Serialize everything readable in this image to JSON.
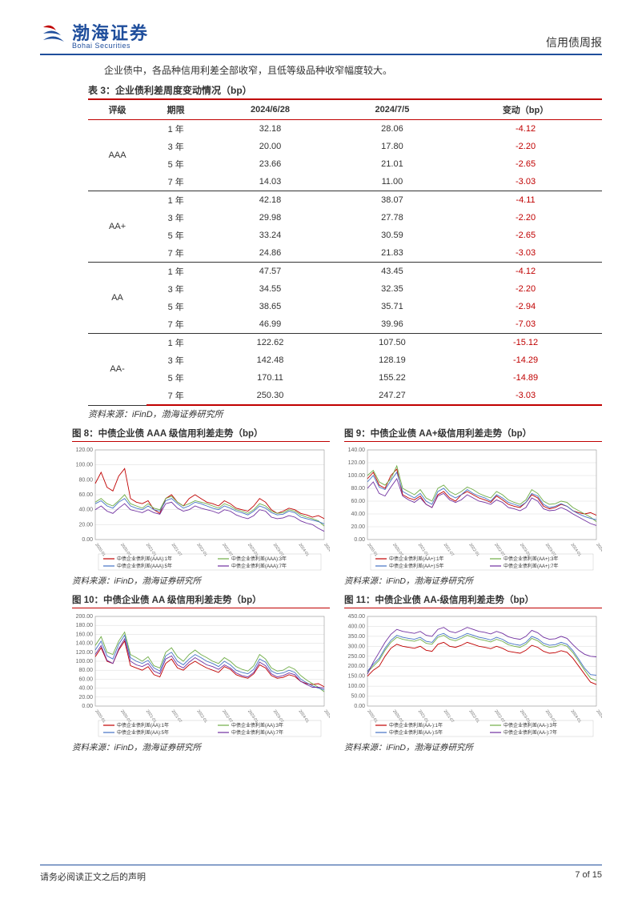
{
  "header": {
    "logo_cn": "渤海证券",
    "logo_en": "Bohai Securities",
    "report_type": "信用债周报"
  },
  "intro": "企业债中，各品种信用利差全部收窄，且低等级品种收窄幅度较大。",
  "table": {
    "title": "表 3：企业债利差周度变动情况（bp）",
    "columns": [
      "评级",
      "期限",
      "2024/6/28",
      "2024/7/5",
      "变动（bp）"
    ],
    "groups": [
      {
        "rating": "AAA",
        "rows": [
          {
            "term": "1 年",
            "d1": "32.18",
            "d2": "28.06",
            "chg": "-4.12"
          },
          {
            "term": "3 年",
            "d1": "20.00",
            "d2": "17.80",
            "chg": "-2.20"
          },
          {
            "term": "5 年",
            "d1": "23.66",
            "d2": "21.01",
            "chg": "-2.65"
          },
          {
            "term": "7 年",
            "d1": "14.03",
            "d2": "11.00",
            "chg": "-3.03"
          }
        ]
      },
      {
        "rating": "AA+",
        "rows": [
          {
            "term": "1 年",
            "d1": "42.18",
            "d2": "38.07",
            "chg": "-4.11"
          },
          {
            "term": "3 年",
            "d1": "29.98",
            "d2": "27.78",
            "chg": "-2.20"
          },
          {
            "term": "5 年",
            "d1": "33.24",
            "d2": "30.59",
            "chg": "-2.65"
          },
          {
            "term": "7 年",
            "d1": "24.86",
            "d2": "21.83",
            "chg": "-3.03"
          }
        ]
      },
      {
        "rating": "AA",
        "rows": [
          {
            "term": "1 年",
            "d1": "47.57",
            "d2": "43.45",
            "chg": "-4.12"
          },
          {
            "term": "3 年",
            "d1": "34.55",
            "d2": "32.35",
            "chg": "-2.20"
          },
          {
            "term": "5 年",
            "d1": "38.65",
            "d2": "35.71",
            "chg": "-2.94"
          },
          {
            "term": "7 年",
            "d1": "46.99",
            "d2": "39.96",
            "chg": "-7.03"
          }
        ]
      },
      {
        "rating": "AA-",
        "rows": [
          {
            "term": "1 年",
            "d1": "122.62",
            "d2": "107.50",
            "chg": "-15.12"
          },
          {
            "term": "3 年",
            "d1": "142.48",
            "d2": "128.19",
            "chg": "-14.29"
          },
          {
            "term": "5 年",
            "d1": "170.11",
            "d2": "155.22",
            "chg": "-14.89"
          },
          {
            "term": "7 年",
            "d1": "250.30",
            "d2": "247.27",
            "chg": "-3.03"
          }
        ]
      }
    ],
    "source": "资料来源：iFinD，渤海证券研究所"
  },
  "charts": [
    {
      "key": "chart8",
      "title": "图 8：中债企业债 AAA 级信用利差走势（bp）",
      "type": "line",
      "ylim": [
        0,
        120
      ],
      "ytick_step": 20,
      "series_colors": [
        "#c00000",
        "#70ad47",
        "#4472c4",
        "#7030a0"
      ],
      "legend": [
        "中债企业债利差(AAA):1年",
        "中债企业债利差(AAA):3年",
        "中债企业债利差(AAA):5年",
        "中债企业债利差(AAA):7年"
      ],
      "x_labels": [
        "2020-01",
        "2020-07",
        "2021-01",
        "2021-07",
        "2022-01",
        "2022-07",
        "2023-01",
        "2023-07",
        "2024-01",
        "2024-07"
      ],
      "series": [
        [
          75,
          90,
          70,
          65,
          85,
          95,
          55,
          50,
          48,
          52,
          40,
          35,
          55,
          60,
          50,
          45,
          55,
          60,
          55,
          50,
          48,
          45,
          52,
          48,
          42,
          40,
          38,
          45,
          55,
          50,
          40,
          35,
          38,
          42,
          40,
          35,
          33,
          30,
          32,
          28
        ],
        [
          50,
          55,
          48,
          45,
          52,
          60,
          48,
          45,
          42,
          48,
          42,
          40,
          55,
          58,
          50,
          45,
          48,
          52,
          50,
          48,
          45,
          42,
          48,
          45,
          40,
          38,
          35,
          40,
          48,
          45,
          38,
          35,
          36,
          40,
          38,
          33,
          30,
          28,
          25,
          18
        ],
        [
          48,
          52,
          45,
          42,
          50,
          55,
          45,
          42,
          40,
          45,
          40,
          38,
          52,
          55,
          48,
          42,
          45,
          50,
          48,
          45,
          42,
          40,
          45,
          42,
          38,
          36,
          33,
          38,
          45,
          42,
          36,
          33,
          34,
          38,
          36,
          30,
          28,
          26,
          24,
          21
        ],
        [
          40,
          45,
          38,
          35,
          42,
          48,
          40,
          38,
          36,
          40,
          36,
          34,
          48,
          50,
          42,
          38,
          40,
          45,
          42,
          40,
          38,
          35,
          40,
          38,
          33,
          30,
          28,
          32,
          40,
          38,
          30,
          28,
          29,
          32,
          30,
          25,
          22,
          20,
          15,
          11
        ]
      ],
      "source": "资料来源：iFinD，渤海证券研究所"
    },
    {
      "key": "chart9",
      "title": "图 9：中债企业债 AA+级信用利差走势（bp）",
      "type": "line",
      "ylim": [
        0,
        140
      ],
      "ytick_step": 20,
      "series_colors": [
        "#c00000",
        "#70ad47",
        "#4472c4",
        "#7030a0"
      ],
      "legend": [
        "中债企业债利差(AA+):1年",
        "中债企业债利差(AA+):3年",
        "中债企业债利差(AA+):5年",
        "中债企业债利差(AA+):7年"
      ],
      "x_labels": [
        "2020-01",
        "2020-07",
        "2021-01",
        "2021-07",
        "2022-01",
        "2022-07",
        "2023-01",
        "2023-07",
        "2024-01",
        "2024-07"
      ],
      "series": [
        [
          95,
          105,
          85,
          80,
          100,
          110,
          70,
          65,
          62,
          68,
          55,
          50,
          70,
          75,
          65,
          60,
          70,
          75,
          70,
          65,
          62,
          58,
          68,
          62,
          55,
          52,
          50,
          58,
          70,
          65,
          52,
          48,
          50,
          55,
          52,
          45,
          42,
          40,
          42,
          38
        ],
        [
          100,
          108,
          90,
          85,
          95,
          115,
          80,
          75,
          70,
          78,
          65,
          60,
          80,
          85,
          75,
          70,
          75,
          82,
          78,
          72,
          68,
          65,
          75,
          70,
          62,
          58,
          55,
          62,
          78,
          72,
          60,
          55,
          56,
          60,
          58,
          50,
          45,
          40,
          35,
          28
        ],
        [
          90,
          100,
          82,
          78,
          92,
          105,
          75,
          70,
          65,
          72,
          60,
          55,
          75,
          80,
          70,
          65,
          70,
          78,
          72,
          68,
          65,
          60,
          70,
          65,
          58,
          55,
          52,
          58,
          72,
          68,
          55,
          50,
          52,
          56,
          52,
          45,
          40,
          36,
          33,
          31
        ],
        [
          80,
          90,
          72,
          68,
          82,
          95,
          68,
          62,
          58,
          65,
          55,
          50,
          68,
          72,
          62,
          58,
          62,
          70,
          65,
          60,
          58,
          55,
          62,
          58,
          50,
          48,
          45,
          50,
          65,
          60,
          48,
          45,
          46,
          50,
          46,
          40,
          35,
          30,
          25,
          22
        ]
      ],
      "source": "资料来源：iFinD，渤海证券研究所"
    },
    {
      "key": "chart10",
      "title": "图 10：中债企业债 AA 级信用利差走势（bp）",
      "type": "line",
      "ylim": [
        0,
        200
      ],
      "ytick_step": 20,
      "series_colors": [
        "#c00000",
        "#70ad47",
        "#4472c4",
        "#7030a0"
      ],
      "legend": [
        "中债企业债利差(AA):1年",
        "中债企业债利差(AA):3年",
        "中债企业债利差(AA):5年",
        "中债企业债利差(AA):7年"
      ],
      "x_labels": [
        "2020-01",
        "2020-07",
        "2021-01",
        "2021-07",
        "2022-01",
        "2022-07",
        "2023-01",
        "2023-07",
        "2024-01",
        "2024-07"
      ],
      "series": [
        [
          110,
          130,
          100,
          95,
          125,
          145,
          90,
          85,
          80,
          88,
          70,
          65,
          95,
          105,
          85,
          80,
          92,
          100,
          92,
          85,
          80,
          75,
          88,
          82,
          70,
          65,
          62,
          72,
          92,
          85,
          68,
          62,
          64,
          70,
          66,
          55,
          50,
          48,
          50,
          43
        ],
        [
          135,
          155,
          120,
          115,
          145,
          165,
          115,
          108,
          100,
          110,
          90,
          85,
          120,
          130,
          110,
          100,
          115,
          125,
          115,
          108,
          100,
          95,
          108,
          100,
          88,
          82,
          78,
          90,
          115,
          105,
          85,
          78,
          80,
          88,
          82,
          68,
          58,
          50,
          42,
          32
        ],
        [
          125,
          145,
          112,
          105,
          138,
          158,
          108,
          100,
          95,
          102,
          85,
          78,
          112,
          120,
          100,
          92,
          105,
          115,
          108,
          100,
          95,
          88,
          100,
          92,
          80,
          75,
          72,
          82,
          105,
          98,
          78,
          72,
          74,
          80,
          75,
          60,
          52,
          45,
          40,
          36
        ],
        [
          115,
          135,
          102,
          95,
          128,
          150,
          100,
          92,
          88,
          95,
          78,
          72,
          105,
          112,
          92,
          85,
          98,
          108,
          100,
          92,
          88,
          82,
          92,
          85,
          74,
          68,
          65,
          75,
          98,
          90,
          72,
          65,
          68,
          74,
          70,
          55,
          48,
          42,
          42,
          40
        ]
      ],
      "source": "资料来源：iFinD，渤海证券研究所"
    },
    {
      "key": "chart11",
      "title": "图 11：中债企业债 AA-级信用利差走势（bp）",
      "type": "line",
      "ylim": [
        0,
        450
      ],
      "ytick_step": 50,
      "series_colors": [
        "#c00000",
        "#70ad47",
        "#4472c4",
        "#7030a0"
      ],
      "legend": [
        "中债企业债利差(AA-):1年",
        "中债企业债利差(AA-):3年",
        "中债企业债利差(AA-):5年",
        "中债企业债利差(AA-):7年"
      ],
      "x_labels": [
        "2020-01",
        "2020-07",
        "2021-01",
        "2021-07",
        "2022-01",
        "2022-07",
        "2023-01",
        "2023-07",
        "2024-01",
        "2024-07"
      ],
      "series": [
        [
          150,
          180,
          200,
          250,
          290,
          310,
          300,
          295,
          290,
          300,
          280,
          275,
          310,
          320,
          300,
          295,
          305,
          320,
          310,
          300,
          295,
          288,
          300,
          290,
          275,
          270,
          265,
          280,
          305,
          295,
          275,
          265,
          268,
          278,
          270,
          240,
          200,
          160,
          120,
          108
        ],
        [
          170,
          200,
          230,
          280,
          320,
          345,
          335,
          330,
          325,
          335,
          315,
          310,
          345,
          355,
          335,
          328,
          340,
          355,
          345,
          335,
          330,
          322,
          335,
          325,
          308,
          300,
          295,
          310,
          340,
          328,
          305,
          295,
          298,
          310,
          300,
          268,
          225,
          180,
          140,
          128
        ],
        [
          175,
          210,
          240,
          290,
          330,
          355,
          345,
          340,
          335,
          345,
          325,
          320,
          355,
          365,
          345,
          338,
          350,
          365,
          355,
          345,
          340,
          332,
          345,
          335,
          318,
          310,
          305,
          320,
          350,
          338,
          315,
          305,
          308,
          320,
          310,
          278,
          235,
          190,
          158,
          155
        ],
        [
          160,
          220,
          270,
          320,
          360,
          385,
          375,
          370,
          365,
          375,
          355,
          350,
          385,
          395,
          375,
          368,
          380,
          395,
          385,
          375,
          370,
          362,
          375,
          365,
          348,
          340,
          335,
          350,
          380,
          368,
          345,
          335,
          338,
          350,
          340,
          308,
          280,
          260,
          250,
          247
        ]
      ],
      "source": "资料来源：iFinD，渤海证券研究所"
    }
  ],
  "footer": {
    "disclaimer": "请务必阅读正文之后的声明",
    "page": "7 of 15"
  },
  "colors": {
    "brand_blue": "#1f4e9c",
    "accent_red": "#c00000",
    "text": "#333333",
    "grid": "#d9d9d9",
    "bg": "#ffffff"
  }
}
